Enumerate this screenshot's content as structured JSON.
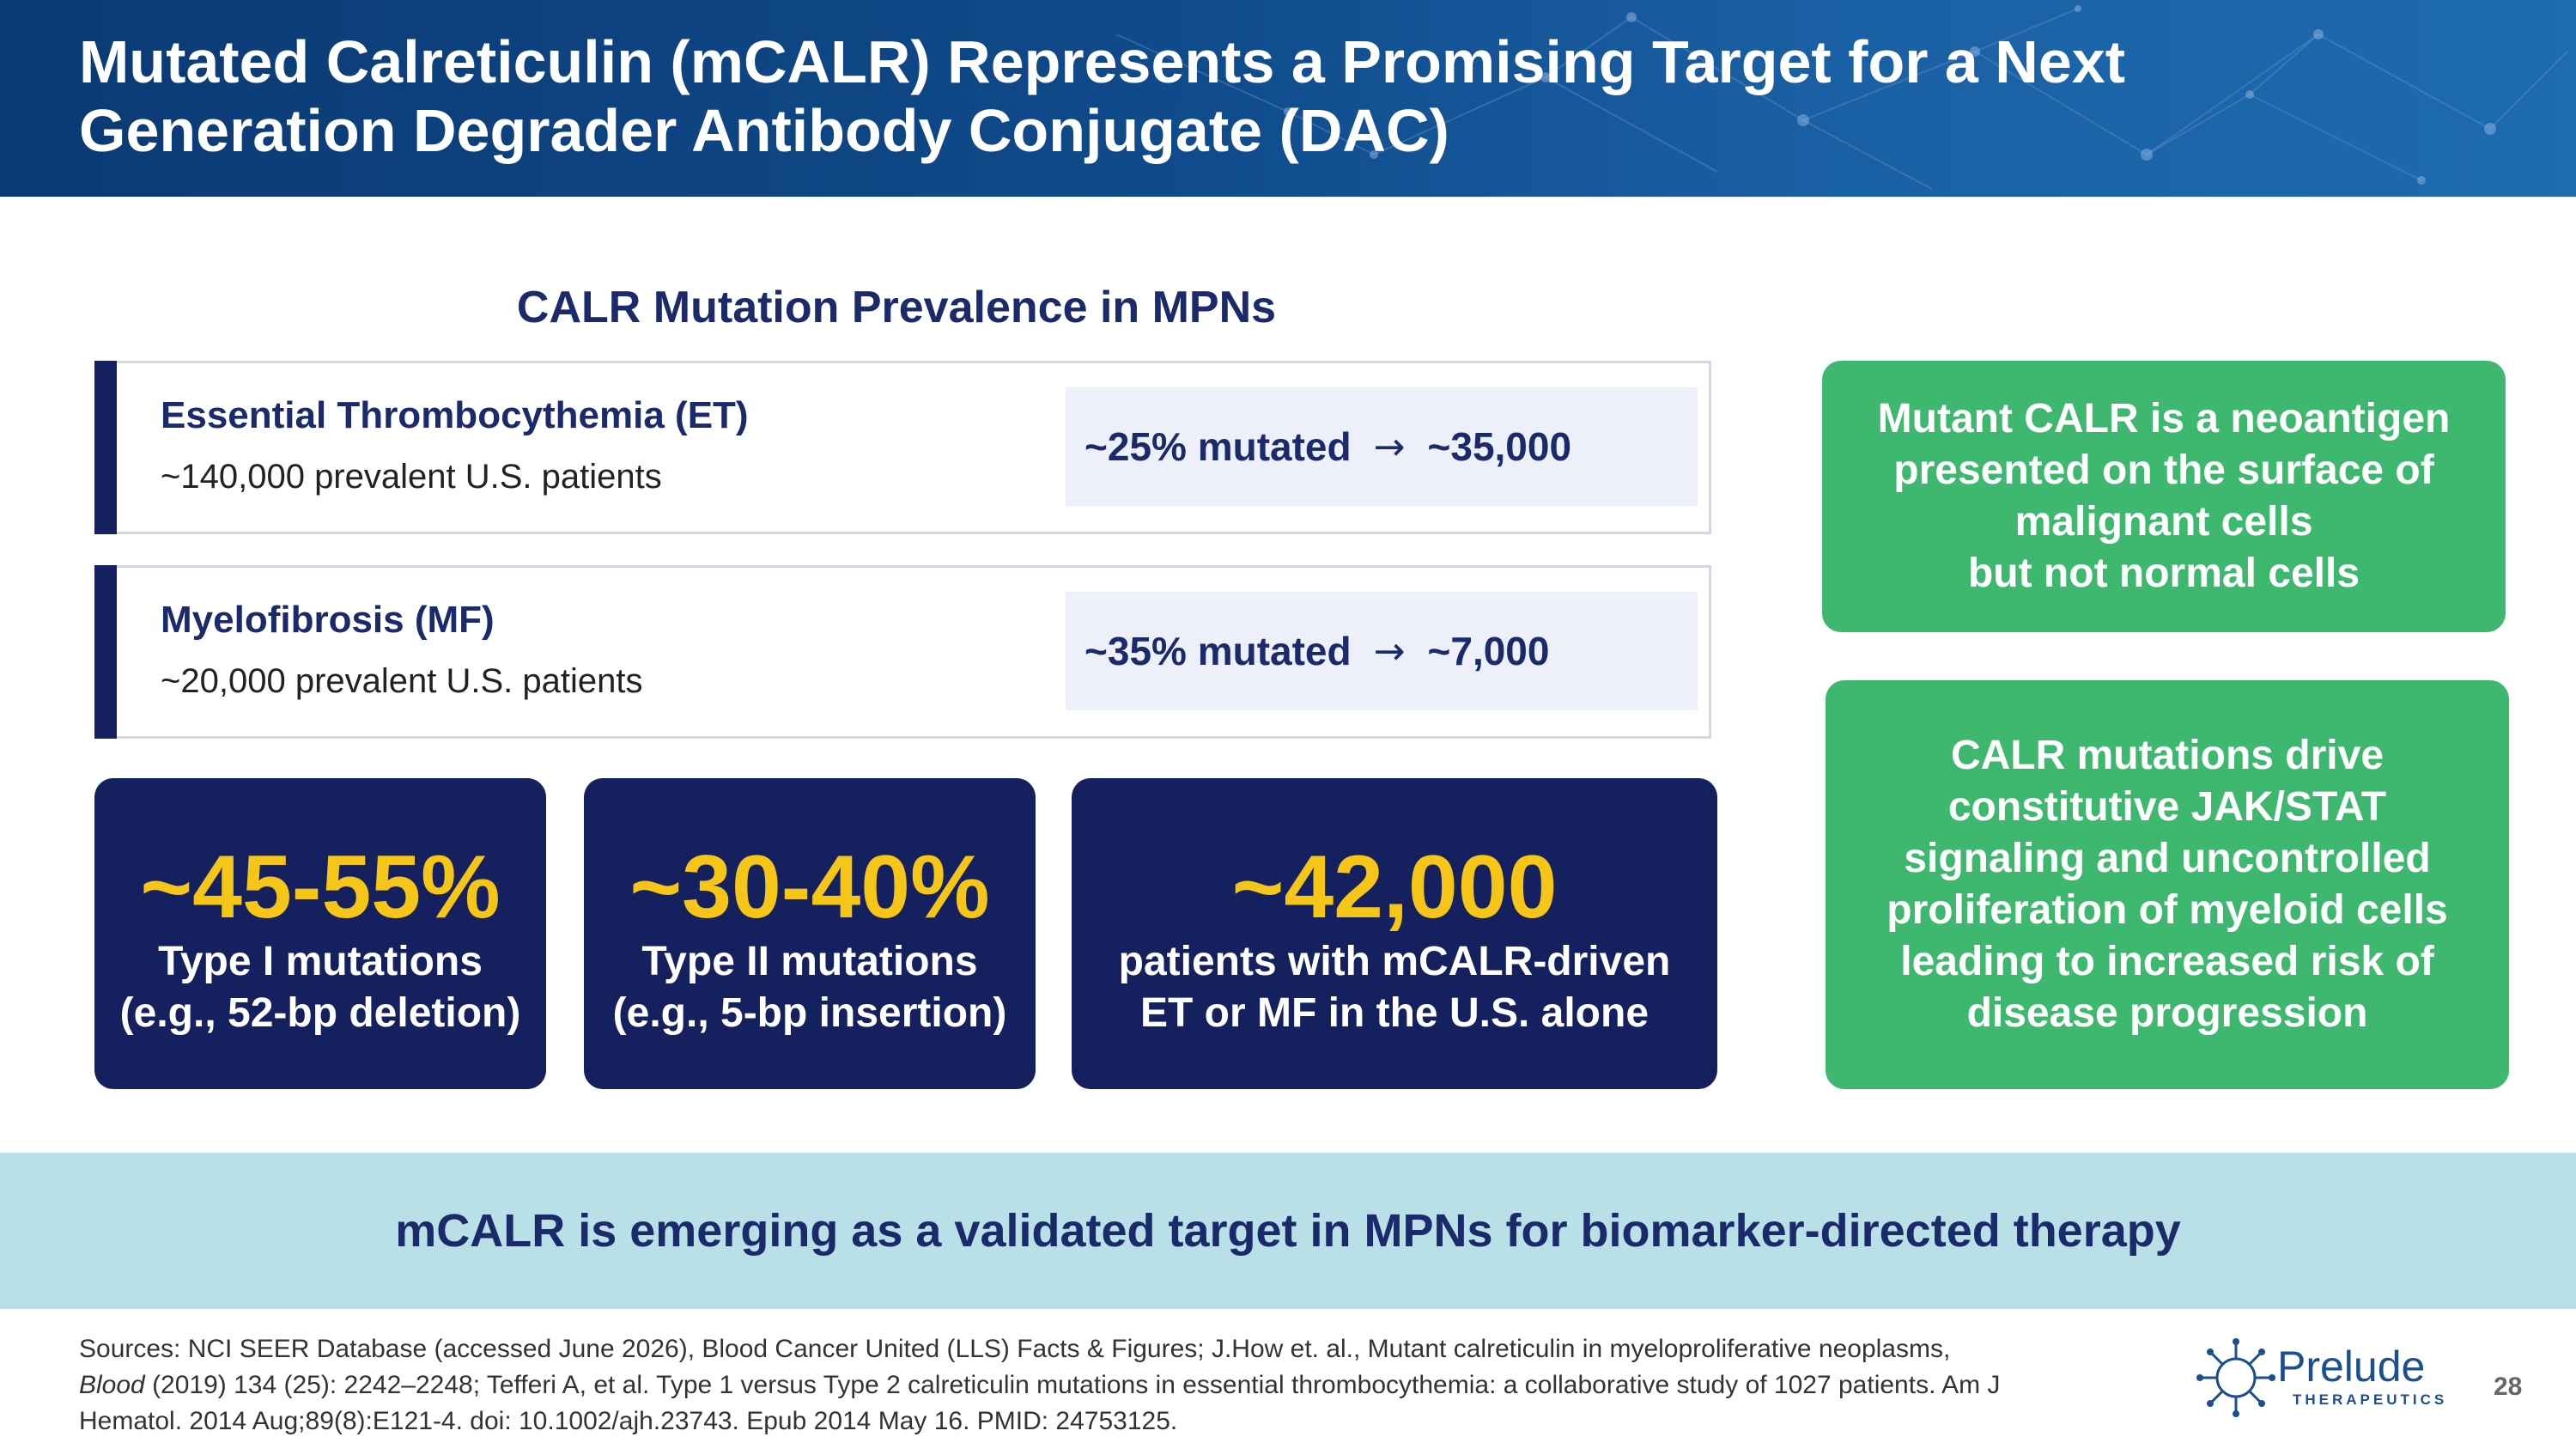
{
  "header": {
    "title_line1": "Mutated Calreticulin (mCALR) Represents a Promising Target for a Next",
    "title_line2": "Generation Degrader Antibody Conjugate (DAC)"
  },
  "section": {
    "title": "CALR Mutation Prevalence in MPNs"
  },
  "diseases": [
    {
      "name": "Essential Thrombocythemia (ET)",
      "patients": "~140,000 prevalent U.S. patients",
      "mutated": "~25% mutated",
      "arrow": "→",
      "result": "~35,000"
    },
    {
      "name": "Myelofibrosis (MF)",
      "patients": "~20,000 prevalent U.S. patients",
      "mutated": "~35% mutated",
      "arrow": "→",
      "result": "~7,000"
    }
  ],
  "stats": [
    {
      "value": "~45-55%",
      "line1": "Type I mutations",
      "line2": "(e.g., 52-bp deletion)"
    },
    {
      "value": "~30-40%",
      "line1": "Type II mutations",
      "line2": "(e.g., 5-bp insertion)"
    },
    {
      "value": "~42,000",
      "line1": "patients with mCALR-driven",
      "line2": "ET or MF in the U.S. alone"
    }
  ],
  "green_boxes": [
    {
      "lines": [
        "Mutant CALR is a neoantigen",
        "presented on the surface of",
        "malignant cells",
        "but not normal cells"
      ]
    },
    {
      "lines": [
        "CALR mutations drive",
        "constitutive JAK/STAT",
        "signaling and uncontrolled",
        "proliferation of myeloid cells",
        "leading to increased risk of",
        "disease progression"
      ]
    }
  ],
  "banner": {
    "text": "mCALR is emerging as a validated target in MPNs for biomarker-directed therapy"
  },
  "sources": {
    "line1": "Sources: NCI SEER Database (accessed June 2026), Blood Cancer United (LLS) Facts & Figures;  J.How et. al., Mutant calreticulin in myeloproliferative neoplasms,",
    "journal": "Blood",
    "line2_rest": " (2019) 134 (25): 2242–2248; Tefferi A, et al. Type 1 versus Type 2 calreticulin mutations in essential thrombocythemia: a collaborative study of 1027 patients. Am J",
    "line3": "Hematol. 2014 Aug;89(8):E121-4. doi: 10.1002/ajh.23743. Epub 2014 May 16. PMID: 24753125."
  },
  "logo": {
    "word": "Prelude",
    "sub": "THERAPEUTICS"
  },
  "page_number": "28",
  "colors": {
    "navy": "#14215e",
    "title_navy": "#1b2a6b",
    "gold": "#f5c518",
    "green": "#3fb86f",
    "banner": "#b8e0e6",
    "pill": "#edf0f8"
  }
}
